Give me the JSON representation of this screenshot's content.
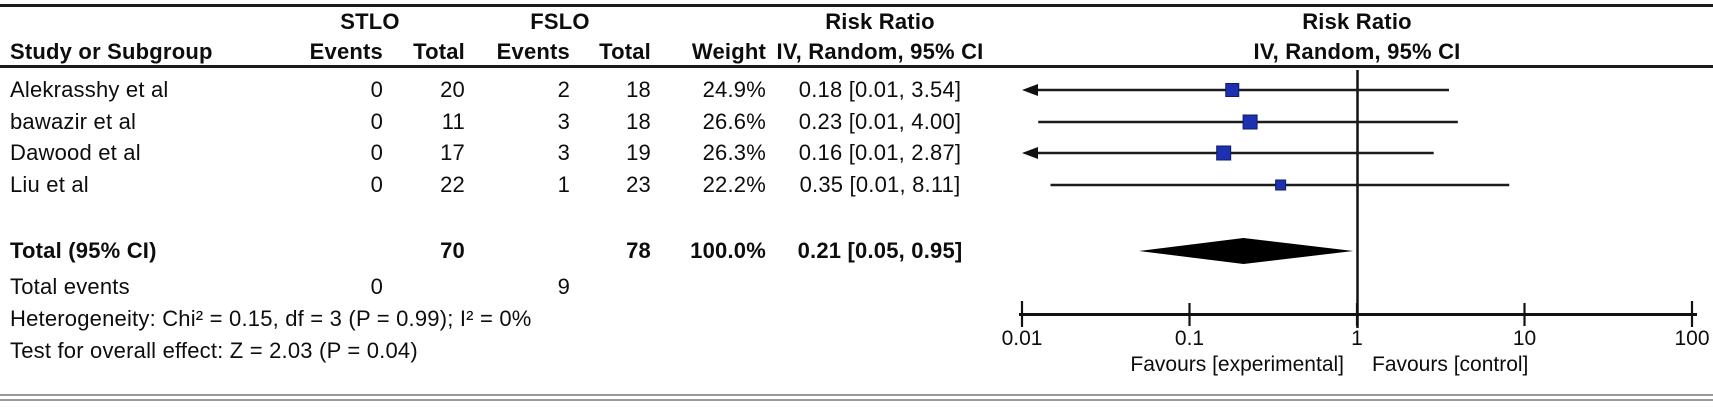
{
  "header": {
    "study_col": "Study or Subgroup",
    "group_exp": "STLO",
    "group_ctl": "FSLO",
    "col_events": "Events",
    "col_total": "Total",
    "col_weight": "Weight",
    "effect_title": "Risk Ratio",
    "effect_subtitle": "IV, Random, 95% CI",
    "plot_title": "Risk Ratio",
    "plot_subtitle": "IV, Random, 95% CI"
  },
  "chart_data": {
    "type": "forest",
    "scale": "log10",
    "xlim": [
      0.01,
      100
    ],
    "x_ticks": [
      0.01,
      0.1,
      1,
      10,
      100
    ],
    "x_tick_labels": [
      "0.01",
      "0.1",
      "1",
      "10",
      "100"
    ],
    "null_line": 1,
    "marker_color": "#1c30b0",
    "marker_border": "#0e1b66",
    "studies": [
      {
        "name": "Alekrasshy et al",
        "events_exp": "0",
        "total_exp": "20",
        "events_ctl": "2",
        "total_ctl": "18",
        "weight": "24.9%",
        "estimate": 0.18,
        "ci_low": 0.01,
        "ci_high": 3.54,
        "ci_low_plot": 0.01,
        "effect_label": "0.18 [0.01, 3.54]",
        "clip_left_arrow": true,
        "marker_size": 13
      },
      {
        "name": "bawazir et al",
        "events_exp": "0",
        "total_exp": "11",
        "events_ctl": "3",
        "total_ctl": "18",
        "weight": "26.6%",
        "estimate": 0.23,
        "ci_low": 0.01,
        "ci_high": 4.0,
        "ci_low_plot": 0.0125,
        "effect_label": "0.23 [0.01, 4.00]",
        "clip_left_arrow": false,
        "marker_size": 14
      },
      {
        "name": "Dawood et al",
        "events_exp": "0",
        "total_exp": "17",
        "events_ctl": "3",
        "total_ctl": "19",
        "weight": "26.3%",
        "estimate": 0.16,
        "ci_low": 0.01,
        "ci_high": 2.87,
        "ci_low_plot": 0.01,
        "effect_label": "0.16 [0.01, 2.87]",
        "clip_left_arrow": true,
        "marker_size": 14
      },
      {
        "name": "Liu et al",
        "events_exp": "0",
        "total_exp": "22",
        "events_ctl": "1",
        "total_ctl": "23",
        "weight": "22.2%",
        "estimate": 0.35,
        "ci_low": 0.01,
        "ci_high": 8.11,
        "ci_low_plot": 0.0148,
        "effect_label": "0.35 [0.01, 8.11]",
        "clip_left_arrow": false,
        "marker_size": 10
      }
    ],
    "total": {
      "name": "Total (95% CI)",
      "total_exp": "70",
      "total_ctl": "78",
      "weight": "100.0%",
      "estimate": 0.21,
      "ci_low": 0.05,
      "ci_high": 0.95,
      "effect_label": "0.21 [0.05, 0.95]"
    },
    "total_events": {
      "label": "Total events",
      "events_exp": "0",
      "events_ctl": "9"
    },
    "heterogeneity": "Heterogeneity: Chi² = 0.15, df = 3 (P = 0.99); I² = 0%",
    "overall_effect": "Test for overall effect: Z = 2.03 (P = 0.04)",
    "favours_left": "Favours [experimental]",
    "favours_right": "Favours [control]"
  }
}
